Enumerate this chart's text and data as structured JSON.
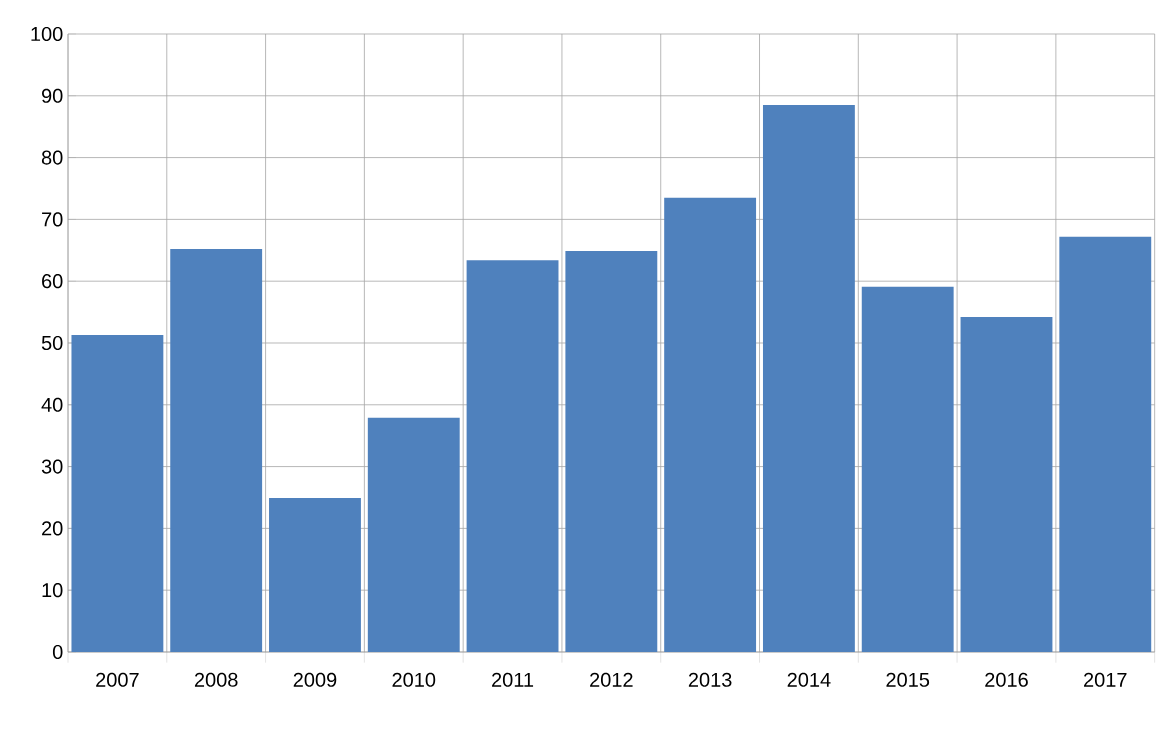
{
  "chart_data": {
    "type": "bar",
    "categories": [
      "2007",
      "2008",
      "2009",
      "2010",
      "2011",
      "2012",
      "2013",
      "2014",
      "2015",
      "2016",
      "2017"
    ],
    "values": [
      51.3,
      65.2,
      24.9,
      37.9,
      63.4,
      64.9,
      73.5,
      88.5,
      59.1,
      54.2,
      67.2
    ],
    "color": "#4f81bd",
    "ylim": [
      0,
      100
    ],
    "yticks": [
      0,
      10,
      20,
      30,
      40,
      50,
      60,
      70,
      80,
      90,
      100
    ],
    "grid": true
  }
}
